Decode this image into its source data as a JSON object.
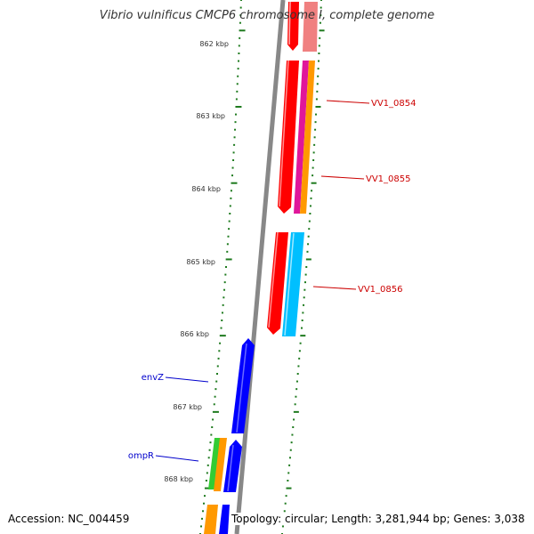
{
  "title": "Vibrio vulnificus CMCP6 chromosome I, complete genome",
  "accession_text": "Accession: NC_004459",
  "summary_text": "Topology: circular; Length: 3,281,944 bp; Genes: 3,038",
  "ruler": {
    "unit": "kbp",
    "ticks": [
      {
        "label": "862 kbp",
        "kbp": 862
      },
      {
        "label": "863 kbp",
        "kbp": 863
      },
      {
        "label": "864 kbp",
        "kbp": 864
      },
      {
        "label": "865 kbp",
        "kbp": 865
      },
      {
        "label": "866 kbp",
        "kbp": 866
      },
      {
        "label": "867 kbp",
        "kbp": 867
      },
      {
        "label": "868 kbp",
        "kbp": 868
      }
    ]
  },
  "gene_labels": [
    {
      "name": "VV1_0854",
      "color": "#cc0000"
    },
    {
      "name": "VV1_0855",
      "color": "#cc0000"
    },
    {
      "name": "VV1_0856",
      "color": "#cc0000"
    },
    {
      "name": "envZ",
      "color": "#0000cc"
    },
    {
      "name": "ompR",
      "color": "#0000cc"
    }
  ],
  "colors": {
    "tick_green": "#1e7a1e",
    "backbone_gray": "#888888",
    "gene_red": "#ff0000",
    "gene_pink": "#f08080",
    "gene_magenta": "#e0169a",
    "gene_orange": "#ff9900",
    "gene_cyan": "#00bfff",
    "gene_blue": "#0000ff",
    "gene_green": "#33cc33"
  }
}
